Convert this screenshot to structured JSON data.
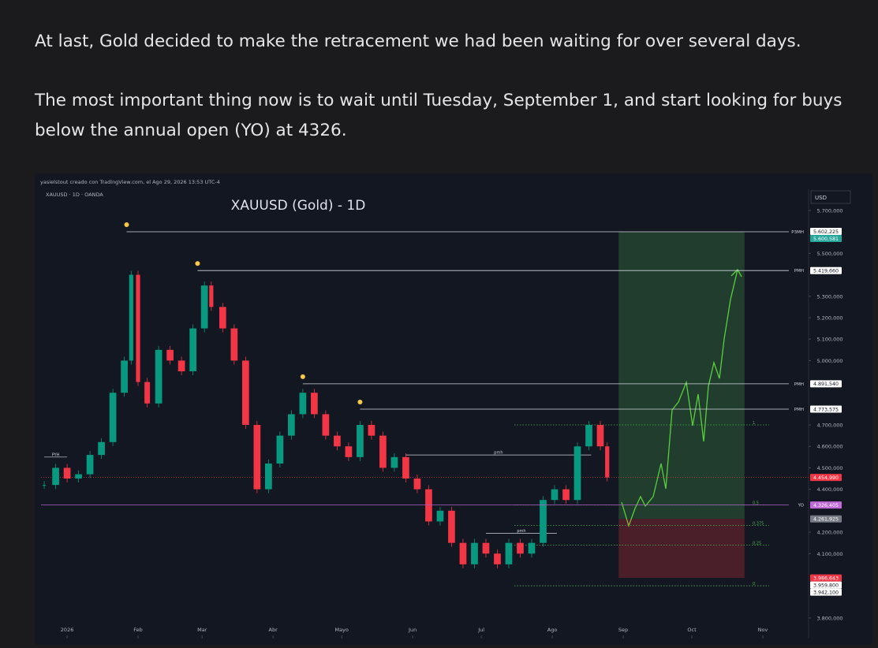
{
  "post": {
    "paragraphs": [
      "At last, Gold decided to make the retracement we had been waiting for over several days.",
      "The most important thing now is to wait until Tuesday, September 1, and start looking for buys below the annual open (YO) at 4326."
    ]
  },
  "chart_data": {
    "type": "candlestick",
    "title": "XAUUSD (Gold) - 1D",
    "credit": "yasielstout creado con TradingView.com, el Ago 29, 2026 13:53 UTC-4",
    "symbol": "XAUUSD · 1D · OANDA",
    "currency": "USD",
    "x": [
      -10,
      -5,
      0,
      5,
      10,
      15,
      20,
      25,
      28,
      31,
      35,
      40,
      45,
      50,
      55,
      60,
      63,
      68,
      73,
      78,
      83,
      88,
      93,
      98,
      103,
      108,
      113,
      118,
      123,
      128,
      133,
      138,
      143,
      148,
      153,
      158,
      163,
      168,
      173,
      178,
      183,
      188,
      193,
      198,
      203,
      208,
      213,
      218,
      223,
      228,
      233,
      236
    ],
    "values": [
      4420,
      4500,
      4450,
      4470,
      4560,
      4620,
      4850,
      5000,
      5400,
      4900,
      4800,
      5050,
      5000,
      4950,
      5150,
      5350,
      5250,
      5150,
      5000,
      4700,
      4400,
      4520,
      4650,
      4750,
      4850,
      4750,
      4650,
      4600,
      4550,
      4700,
      4650,
      4500,
      4550,
      4450,
      4400,
      4250,
      4300,
      4150,
      4050,
      4150,
      4100,
      4050,
      4150,
      4100,
      4150,
      4350,
      4400,
      4350,
      4600,
      4700,
      4600,
      4455
    ],
    "up_color": "#089981",
    "down_color": "#f23645",
    "xlim": [
      -11.4,
      324
    ],
    "xticks": [
      {
        "value": 0,
        "label": "2026"
      },
      {
        "value": 31,
        "label": "Feb"
      },
      {
        "value": 59,
        "label": "Mar"
      },
      {
        "value": 90,
        "label": "Abr"
      },
      {
        "value": 120,
        "label": "Mayo"
      },
      {
        "value": 151,
        "label": "Jun"
      },
      {
        "value": 181,
        "label": "Jul"
      },
      {
        "value": 212,
        "label": "Ago"
      },
      {
        "value": 243,
        "label": "Sep"
      },
      {
        "value": 273,
        "label": "Oct"
      },
      {
        "value": 304,
        "label": "Nov"
      }
    ],
    "ylim": [
      3704,
      5799
    ],
    "yticks": [
      {
        "value": 3800,
        "label": "3.800,000"
      },
      {
        "value": 4100,
        "label": "4.100,000"
      },
      {
        "value": 4200,
        "label": "4.200,000"
      },
      {
        "value": 4400,
        "label": "4.400,000"
      },
      {
        "value": 4500,
        "label": "4.500,000"
      },
      {
        "value": 4600,
        "label": "4.600,000"
      },
      {
        "value": 4700,
        "label": "4.700,000"
      },
      {
        "value": 5000,
        "label": "5.000,000"
      },
      {
        "value": 5100,
        "label": "5.100,000"
      },
      {
        "value": 5200,
        "label": "5.200,000"
      },
      {
        "value": 5300,
        "label": "5.300,000"
      },
      {
        "value": 5500,
        "label": "5.500,000"
      },
      {
        "value": 5700,
        "label": "5.700,000"
      }
    ],
    "levels": [
      {
        "name": "P3MH",
        "value": 5600.581,
        "label": "5.600,581",
        "from": 26,
        "color": "#26a69a"
      },
      {
        "name": "PMH",
        "value": 5419.66,
        "label": "5.419,660",
        "from": 57,
        "color": "#ffffff"
      },
      {
        "name": "PMH",
        "value": 4891.54,
        "label": "4.891,540",
        "from": 103,
        "color": "#ffffff"
      },
      {
        "name": "PMH",
        "value": 4773.575,
        "label": "4.773,575",
        "from": 128,
        "color": "#ffffff"
      },
      {
        "name": "YO",
        "value": 4326.405,
        "label": "4.326,405",
        "from": -11.4,
        "color": "#c16bd8"
      }
    ],
    "price_labels": [
      {
        "value": 5602.225,
        "label": "5.602,225",
        "color": "#ffffff"
      },
      {
        "value": 4454.99,
        "label": "4.454,990",
        "color": "#f23645"
      },
      {
        "value": 4261.925,
        "label": "4.261,925",
        "color": "#787b86"
      },
      {
        "value": 3986.643,
        "label": "3.986,643",
        "color": "#f23645"
      },
      {
        "value": 3959.8,
        "label": "3.959,800",
        "color": "#ffffff"
      },
      {
        "value": 3942.1,
        "label": "3.942,100",
        "color": "#ffffff"
      }
    ],
    "fib": [
      {
        "value": 4700,
        "label": "1"
      },
      {
        "value": 4326.405,
        "label": "0.5"
      },
      {
        "value": 4231,
        "label": "0.375"
      },
      {
        "value": 4140,
        "label": "0.25"
      },
      {
        "value": 3950,
        "label": "0"
      }
    ],
    "annotations": [
      {
        "text": "pmh",
        "value": 4560,
        "from": 148,
        "to": 229
      },
      {
        "text": "pmh",
        "value": 4195,
        "from": 183,
        "to": 214
      },
      {
        "text": "PYH",
        "value": 4550,
        "from": -10,
        "to": 0
      }
    ],
    "position": {
      "from": 241,
      "to": 296,
      "target": 5600.581,
      "entry": 4261.925,
      "stop": 3986.643
    }
  }
}
